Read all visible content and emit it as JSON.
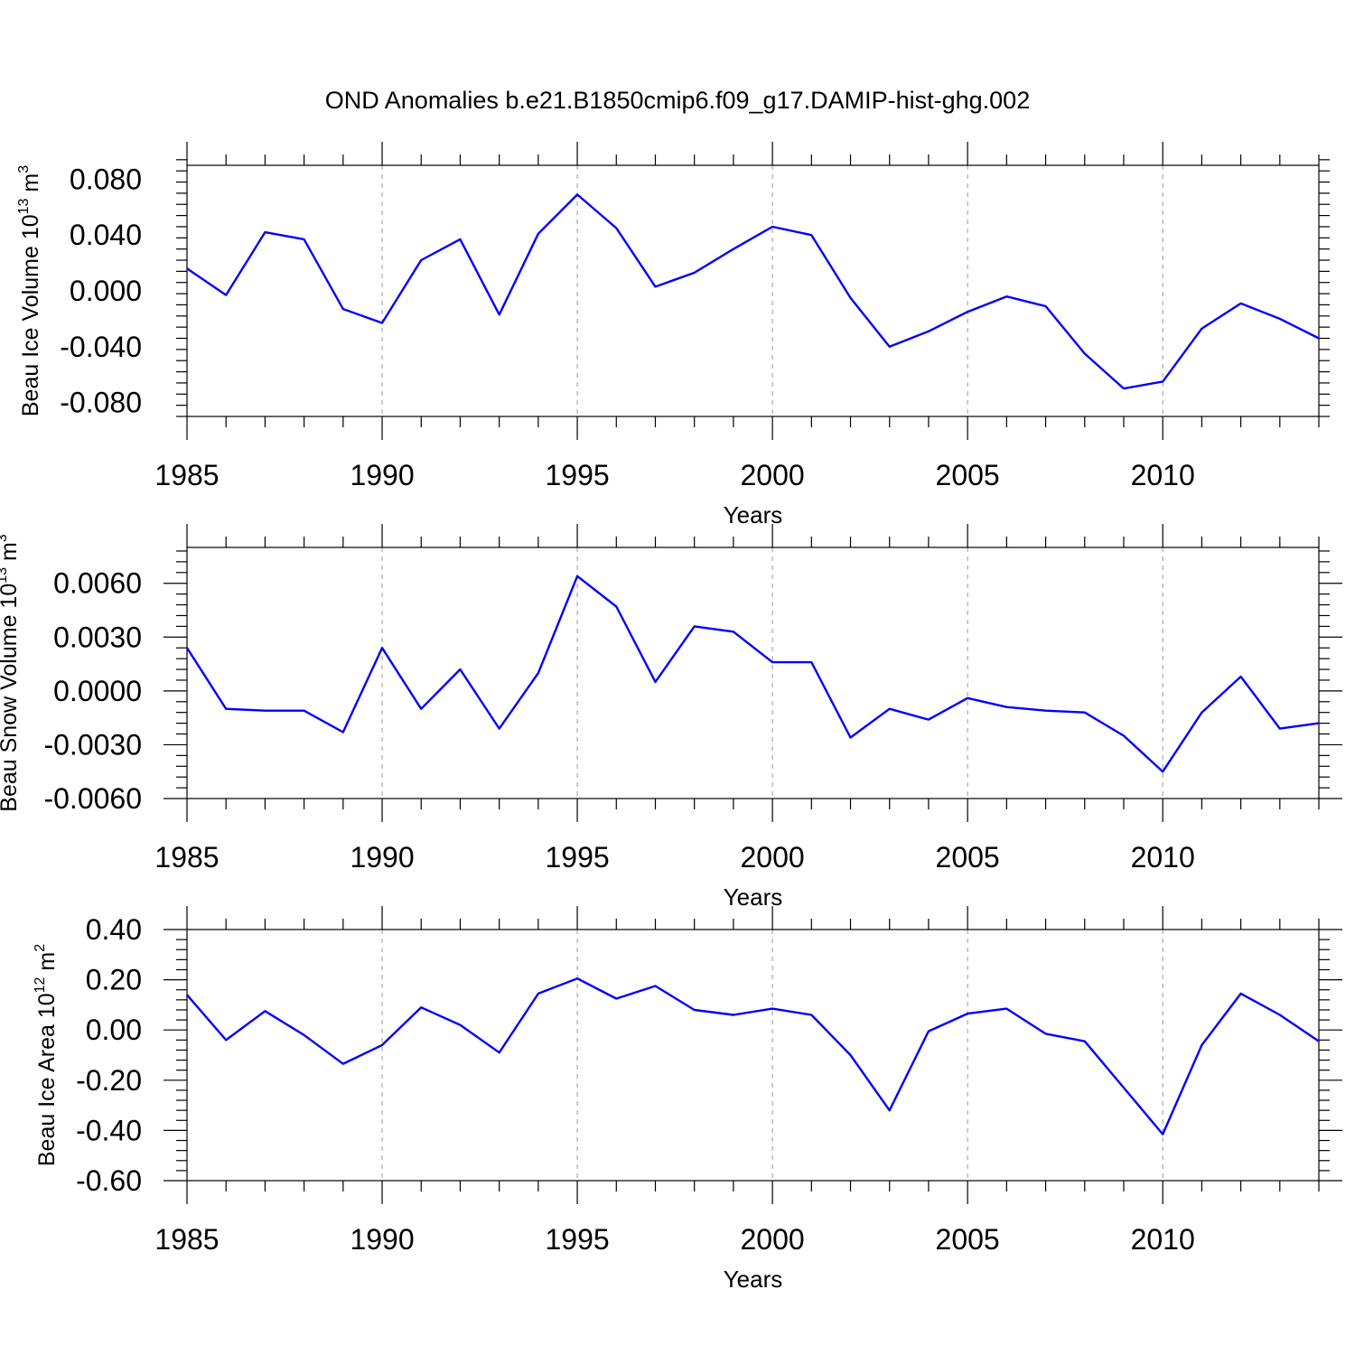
{
  "title": "OND Anomalies b.e21.B1850cmip6.f09_g17.DAMIP-hist-ghg.002",
  "colors": {
    "line": "#0000ff",
    "grid": "#999999",
    "axis": "#000000"
  },
  "chart_data": [
    {
      "type": "line",
      "ylabel": {
        "text": "Beau Ice Volume 10",
        "exponent": "13",
        "unit": "m",
        "unit_exponent": "3"
      },
      "xlabel": "Years",
      "xlim": [
        1985,
        2014
      ],
      "ylim": [
        -0.09,
        0.09
      ],
      "x_ticks": [
        1985,
        1990,
        1995,
        2000,
        2005,
        2010
      ],
      "x_tick_labels": [
        "1985",
        "1990",
        "1995",
        "2000",
        "2005",
        "2010"
      ],
      "y_ticks": [
        0.08,
        0.04,
        0.0,
        -0.04,
        -0.08
      ],
      "y_tick_labels": [
        "0.080",
        "0.040",
        "0.000",
        "-0.040",
        "-0.080"
      ],
      "grid": "vertical dashed at major x ticks",
      "series": [
        {
          "x": [
            1985,
            1986,
            1987,
            1988,
            1989,
            1990,
            1991,
            1992,
            1993,
            1994,
            1995,
            1996,
            1997,
            1998,
            1999,
            2000,
            2001,
            2002,
            2003,
            2004,
            2005,
            2006,
            2007,
            2008,
            2009,
            2010,
            2011,
            2012,
            2013,
            2014
          ],
          "values": [
            0.016,
            -0.003,
            0.042,
            0.037,
            -0.013,
            -0.023,
            0.022,
            0.037,
            -0.017,
            0.041,
            0.069,
            0.045,
            0.003,
            0.013,
            0.03,
            0.046,
            0.04,
            -0.005,
            -0.04,
            -0.029,
            -0.015,
            -0.004,
            -0.011,
            -0.045,
            -0.07,
            -0.065,
            -0.027,
            -0.009,
            -0.02,
            -0.034
          ]
        }
      ]
    },
    {
      "type": "line",
      "ylabel": {
        "text": "Beau Snow Volume 10",
        "exponent": "13",
        "unit": "m",
        "unit_exponent": "3"
      },
      "xlabel": "Years",
      "xlim": [
        1985,
        2014
      ],
      "ylim": [
        -0.006,
        0.008
      ],
      "x_ticks": [
        1985,
        1990,
        1995,
        2000,
        2005,
        2010
      ],
      "x_tick_labels": [
        "1985",
        "1990",
        "1995",
        "2000",
        "2005",
        "2010"
      ],
      "y_ticks": [
        0.006,
        0.003,
        0.0,
        -0.003,
        -0.006
      ],
      "y_tick_labels": [
        "0.0060",
        "0.0030",
        "0.0000",
        "-0.0030",
        "-0.0060"
      ],
      "grid": "vertical dashed at major x ticks",
      "series": [
        {
          "x": [
            1985,
            1986,
            1987,
            1988,
            1989,
            1990,
            1991,
            1992,
            1993,
            1994,
            1995,
            1996,
            1997,
            1998,
            1999,
            2000,
            2001,
            2002,
            2003,
            2004,
            2005,
            2006,
            2007,
            2008,
            2009,
            2010,
            2011,
            2012,
            2013,
            2014
          ],
          "values": [
            0.0024,
            -0.001,
            -0.0011,
            -0.0011,
            -0.0023,
            0.0024,
            -0.001,
            0.0012,
            -0.0021,
            0.001,
            0.0064,
            0.0047,
            0.0005,
            0.0036,
            0.0033,
            0.0016,
            0.0016,
            -0.0026,
            -0.001,
            -0.0016,
            -0.0004,
            -0.0009,
            -0.0011,
            -0.0012,
            -0.0025,
            -0.0045,
            -0.0012,
            0.0008,
            -0.0021,
            -0.0018
          ]
        }
      ]
    },
    {
      "type": "line",
      "ylabel": {
        "text": "Beau Ice Area 10",
        "exponent": "12",
        "unit": "m",
        "unit_exponent": "2"
      },
      "xlabel": "Years",
      "xlim": [
        1985,
        2014
      ],
      "ylim": [
        -0.6,
        0.4
      ],
      "x_ticks": [
        1985,
        1990,
        1995,
        2000,
        2005,
        2010
      ],
      "x_tick_labels": [
        "1985",
        "1990",
        "1995",
        "2000",
        "2005",
        "2010"
      ],
      "y_ticks": [
        0.4,
        0.2,
        0.0,
        -0.2,
        -0.4,
        -0.6
      ],
      "y_tick_labels": [
        "0.40",
        "0.20",
        "0.00",
        "-0.20",
        "-0.40",
        "-0.60"
      ],
      "grid": "vertical dashed at major x ticks",
      "series": [
        {
          "x": [
            1985,
            1986,
            1987,
            1988,
            1989,
            1990,
            1991,
            1992,
            1993,
            1994,
            1995,
            1996,
            1997,
            1998,
            1999,
            2000,
            2001,
            2002,
            2003,
            2004,
            2005,
            2006,
            2007,
            2008,
            2009,
            2010,
            2011,
            2012,
            2013,
            2014
          ],
          "values": [
            0.14,
            -0.04,
            0.075,
            -0.02,
            -0.135,
            -0.06,
            0.09,
            0.02,
            -0.09,
            0.145,
            0.205,
            0.125,
            0.175,
            0.08,
            0.06,
            0.085,
            0.06,
            -0.1,
            -0.32,
            -0.005,
            0.065,
            0.085,
            -0.015,
            -0.045,
            -0.23,
            -0.415,
            -0.06,
            0.145,
            0.06,
            -0.045
          ]
        }
      ]
    }
  ]
}
